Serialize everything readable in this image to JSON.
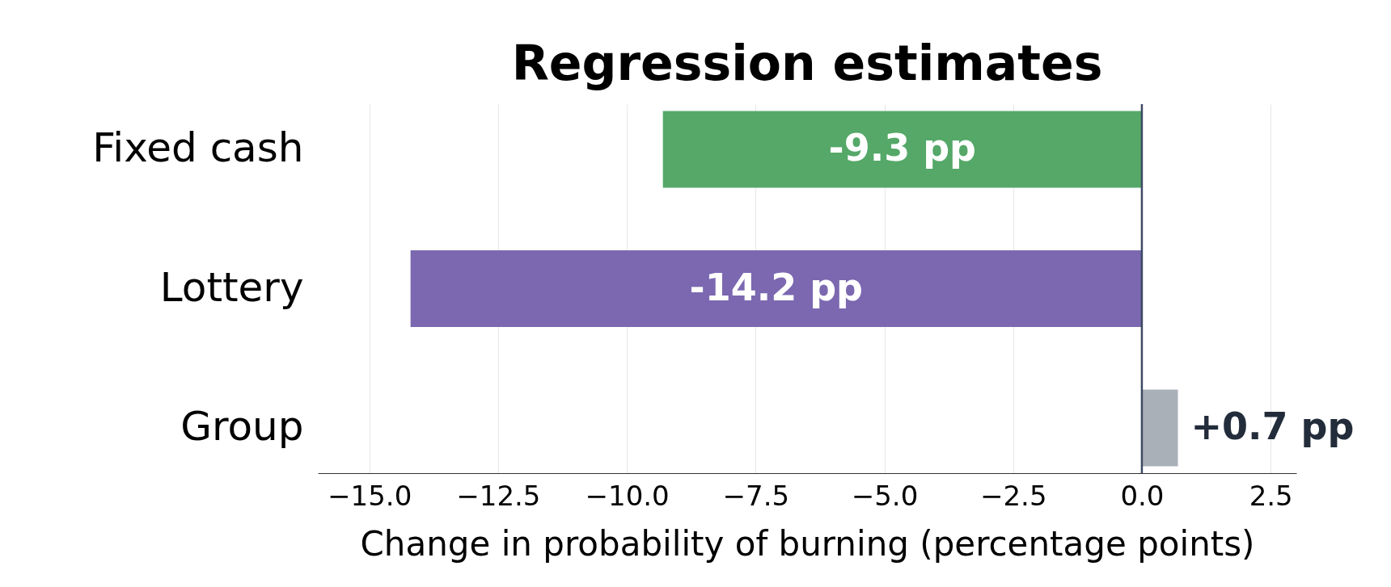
{
  "chart_data": {
    "type": "bar",
    "orientation": "horizontal",
    "title": "Regression estimates",
    "xlabel": "Change in probability of burning (percentage points)",
    "categories": [
      "Fixed cash",
      "Lottery",
      "Group"
    ],
    "values": [
      -9.3,
      -14.2,
      0.7
    ],
    "colors": [
      "#55a868",
      "#7b68b0",
      "#aab0b8"
    ],
    "value_labels": [
      "-9.3 pp",
      "-14.2 pp",
      "+0.7 pp"
    ],
    "xlim": [
      -16,
      3
    ],
    "xticks": [
      {
        "value": -15,
        "label": "−15.0"
      },
      {
        "value": -12.5,
        "label": "−12.5"
      },
      {
        "value": -10,
        "label": "−10.0"
      },
      {
        "value": -7.5,
        "label": "−7.5"
      },
      {
        "value": -5,
        "label": "−5.0"
      },
      {
        "value": -2.5,
        "label": "−2.5"
      },
      {
        "value": 0,
        "label": "0.0"
      },
      2.5
    ],
    "ref_lines": [
      {
        "axis": "x",
        "value": 0,
        "color": "#3d4a63"
      }
    ],
    "grid": "x"
  }
}
